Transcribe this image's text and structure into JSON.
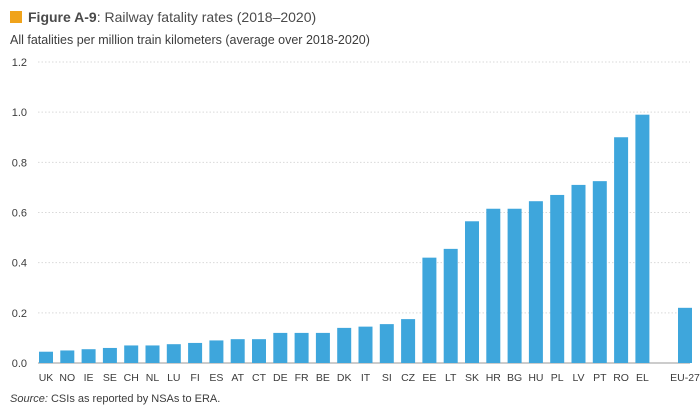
{
  "figure": {
    "label": "Figure A-9",
    "title": ": Railway fatality rates (2018–2020)",
    "accent_color": "#f0a31b"
  },
  "subtitle": "All fatalities per million train kilometers (average over 2018-2020)",
  "source": {
    "label": "Source:",
    "text": " CSIs as reported by NSAs to ERA."
  },
  "chart_data": {
    "type": "bar",
    "categories": [
      "UK",
      "NO",
      "IE",
      "SE",
      "CH",
      "NL",
      "LU",
      "FI",
      "ES",
      "AT",
      "CT",
      "DE",
      "FR",
      "BE",
      "DK",
      "IT",
      "SI",
      "CZ",
      "EE",
      "LT",
      "SK",
      "HR",
      "BG",
      "HU",
      "PL",
      "LV",
      "PT",
      "RO",
      "EL",
      "",
      "EU-27"
    ],
    "values": [
      0.045,
      0.05,
      0.055,
      0.06,
      0.07,
      0.07,
      0.075,
      0.08,
      0.09,
      0.095,
      0.095,
      0.12,
      0.12,
      0.12,
      0.14,
      0.145,
      0.155,
      0.175,
      0.42,
      0.455,
      0.565,
      0.615,
      0.615,
      0.645,
      0.67,
      0.71,
      0.725,
      0.9,
      0.99,
      null,
      0.22
    ],
    "ylim": [
      0,
      1.2
    ],
    "yticks": [
      "0.0",
      "0.2",
      "0.4",
      "0.6",
      "0.8",
      "1.0",
      "1.2"
    ],
    "grid": true,
    "bar_color": "#3ea6dc",
    "grid_color": "#d9d9d9"
  }
}
